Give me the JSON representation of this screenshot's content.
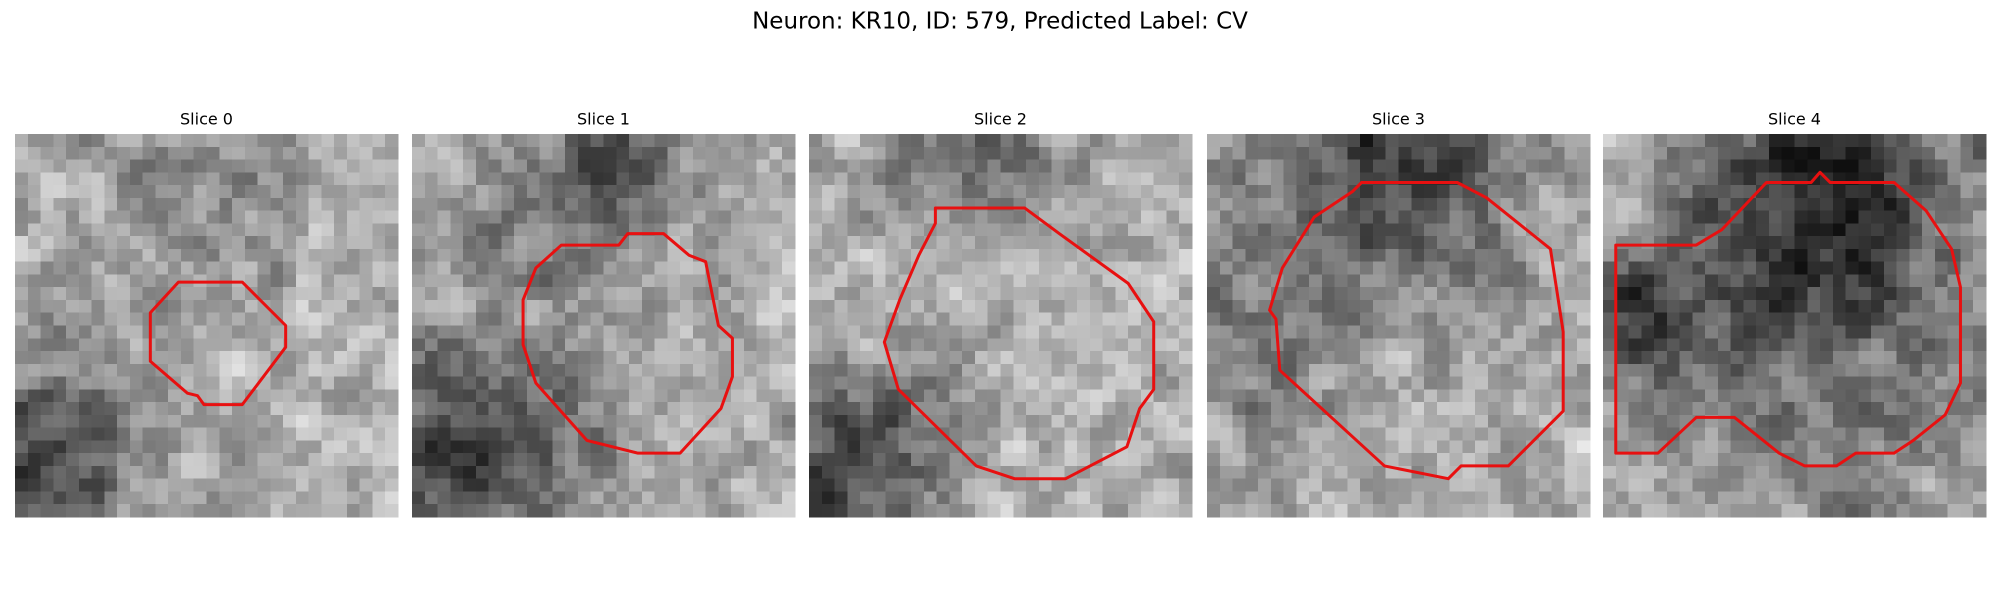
{
  "figure": {
    "title": "Neuron: KR10, ID: 579, Predicted Label: CV",
    "panels": [
      {
        "title": "Slice 0"
      },
      {
        "title": "Slice 1"
      },
      {
        "title": "Slice 2"
      },
      {
        "title": "Slice 3"
      },
      {
        "title": "Slice 4"
      }
    ]
  }
}
